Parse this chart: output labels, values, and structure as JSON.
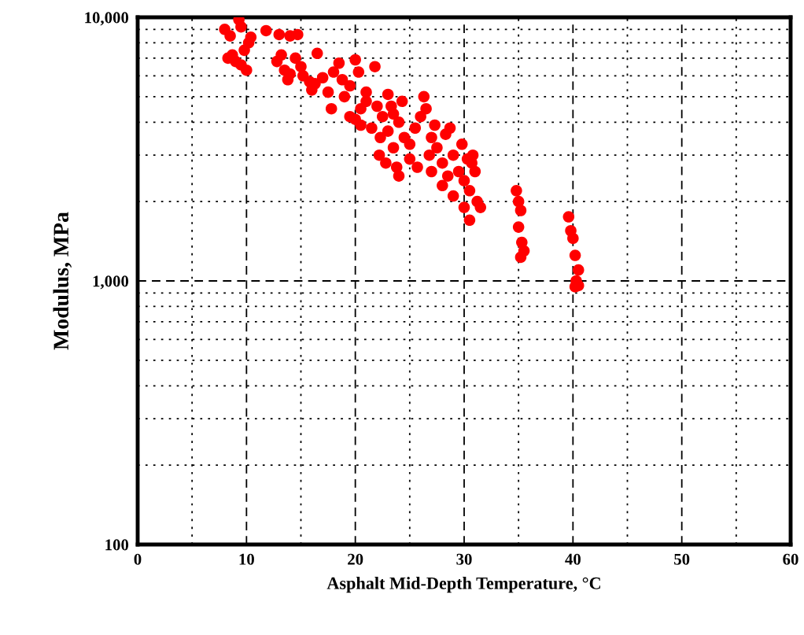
{
  "chart_data": {
    "type": "scatter",
    "xlabel": "Asphalt Mid-Depth Temperature, °C",
    "ylabel": "Modulus, MPa",
    "log": "y",
    "grid": true,
    "marker": "circle",
    "xlim": [
      0,
      60
    ],
    "ylim": [
      100,
      10000
    ],
    "xticks": [
      0,
      {
        "value": 5,
        "label": null
      },
      10,
      {
        "value": 15,
        "label": null
      },
      20,
      {
        "value": 25,
        "label": null
      },
      30,
      {
        "value": 35,
        "label": null
      },
      40,
      {
        "value": 45,
        "label": null
      },
      50,
      {
        "value": 55,
        "label": null
      },
      60
    ],
    "yticks": [
      {
        "value": 100,
        "label": "100"
      },
      {
        "value": 200,
        "label": null
      },
      {
        "value": 300,
        "label": null
      },
      {
        "value": 400,
        "label": null
      },
      {
        "value": 500,
        "label": null
      },
      {
        "value": 600,
        "label": null
      },
      {
        "value": 700,
        "label": null
      },
      {
        "value": 800,
        "label": null
      },
      {
        "value": 900,
        "label": null
      },
      {
        "value": 1000,
        "label": "1,000"
      },
      {
        "value": 2000,
        "label": null
      },
      {
        "value": 3000,
        "label": null
      },
      {
        "value": 4000,
        "label": null
      },
      {
        "value": 5000,
        "label": null
      },
      {
        "value": 6000,
        "label": null
      },
      {
        "value": 7000,
        "label": null
      },
      {
        "value": 8000,
        "label": null
      },
      {
        "value": 9000,
        "label": null
      },
      {
        "value": 10000,
        "label": "10,000"
      }
    ],
    "series": [
      {
        "color": "#ff0000",
        "x": [
          8,
          8.5,
          9.3,
          9.5,
          8.3,
          9,
          9.8,
          10.2,
          10,
          9.5,
          8.7,
          10.4,
          11.8,
          13,
          14,
          14.7,
          13.2,
          12.8,
          13.5,
          13.8,
          14.5,
          15,
          15.2,
          14,
          15.8,
          16.5,
          16.3,
          17,
          17.5,
          17.8,
          18,
          18.5,
          18.8,
          19,
          19.5,
          20,
          20.3,
          20,
          20.5,
          21,
          21.5,
          21.8,
          22,
          22.3,
          22.2,
          22.5,
          23,
          23,
          23.3,
          23.5,
          23.8,
          24,
          24,
          24.3,
          24.5,
          25,
          25,
          25.5,
          26,
          26.3,
          26.5,
          26.8,
          27,
          27,
          27.5,
          28,
          28,
          28.3,
          28.7,
          29,
          29,
          29.5,
          29.8,
          30,
          30,
          30.3,
          30.5,
          30.5,
          30.8,
          31,
          31.2,
          31.5,
          30.7,
          21,
          20.5,
          19.5,
          22.8,
          23.5,
          25.7,
          27.3,
          28.5,
          16,
          34.8,
          35,
          35.2,
          35,
          35.3,
          35.5,
          35.2,
          39.6,
          39.8,
          40,
          40.2,
          40.5,
          40.3,
          40.2,
          40.5
        ],
        "values": [
          9000,
          8500,
          9800,
          9200,
          7000,
          6800,
          7500,
          8000,
          6300,
          6600,
          7200,
          8400,
          8900,
          8600,
          8500,
          8600,
          7200,
          6800,
          6300,
          5800,
          7000,
          6500,
          6000,
          6100,
          5700,
          7300,
          5600,
          5900,
          5200,
          4500,
          6200,
          6700,
          5800,
          5000,
          5500,
          6900,
          6200,
          4100,
          4500,
          5200,
          3800,
          6500,
          4600,
          3500,
          3000,
          4200,
          3700,
          5100,
          4600,
          3200,
          2700,
          2500,
          4000,
          4800,
          3500,
          3300,
          2900,
          3800,
          4200,
          5000,
          4500,
          3000,
          3500,
          2600,
          3200,
          2800,
          2300,
          3600,
          3800,
          3000,
          2100,
          2600,
          3300,
          2400,
          1900,
          2900,
          2200,
          1700,
          3000,
          2600,
          2000,
          1900,
          2800,
          4800,
          3900,
          4200,
          2800,
          4300,
          2700,
          3900,
          2500,
          5300,
          2200,
          2000,
          1850,
          1600,
          1400,
          1300,
          1230,
          1750,
          1550,
          1450,
          1250,
          1100,
          1000,
          950,
          960
        ]
      }
    ]
  }
}
